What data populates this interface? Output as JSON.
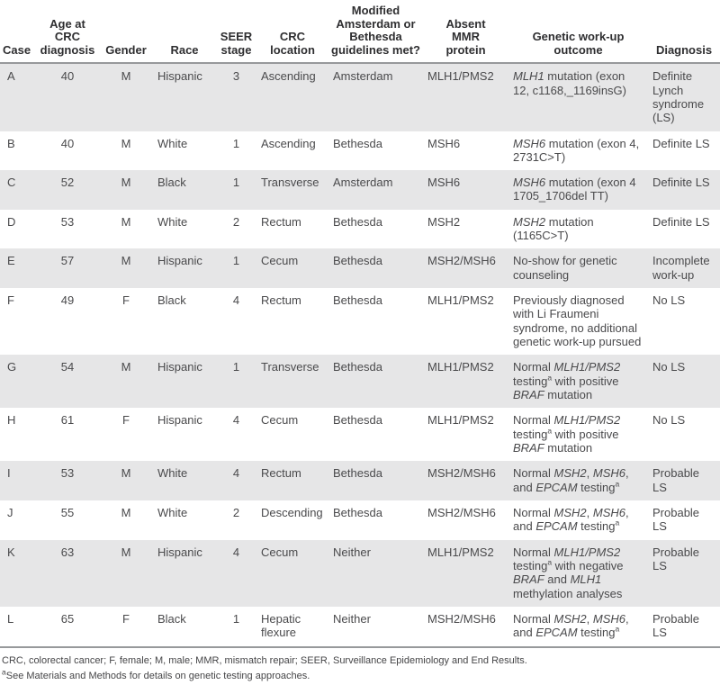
{
  "table": {
    "columns": [
      {
        "id": "case",
        "label": "Case"
      },
      {
        "id": "age",
        "label": "Age at CRC\ndiagnosis"
      },
      {
        "id": "gender",
        "label": "Gender"
      },
      {
        "id": "race",
        "label": "Race"
      },
      {
        "id": "stage",
        "label": "SEER\nstage"
      },
      {
        "id": "location",
        "label": "CRC\nlocation"
      },
      {
        "id": "guidelines",
        "label": "Modified\nAmsterdam or\nBethesda\nguidelines met?"
      },
      {
        "id": "mmr",
        "label": "Absent\nMMR\nprotein"
      },
      {
        "id": "outcome",
        "label": "Genetic work-up\noutcome"
      },
      {
        "id": "diagnosis",
        "label": "Diagnosis"
      }
    ],
    "rows": [
      {
        "case": "A",
        "age": "40",
        "gender": "M",
        "race": "Hispanic",
        "stage": "3",
        "location": "Ascending",
        "guidelines": "Amsterdam",
        "mmr": "MLH1/PMS2",
        "outcome": "*MLH1* mutation (exon 12, c1168,_1169insG)",
        "diagnosis": "Definite Lynch syndrome (LS)"
      },
      {
        "case": "B",
        "age": "40",
        "gender": "M",
        "race": "White",
        "stage": "1",
        "location": "Ascending",
        "guidelines": "Bethesda",
        "mmr": "MSH6",
        "outcome": "*MSH6* mutation (exon 4, 2731C>T)",
        "diagnosis": "Definite LS"
      },
      {
        "case": "C",
        "age": "52",
        "gender": "M",
        "race": "Black",
        "stage": "1",
        "location": "Transverse",
        "guidelines": "Amsterdam",
        "mmr": "MSH6",
        "outcome": "*MSH6* mutation (exon 4 1705_1706del TT)",
        "diagnosis": "Definite LS"
      },
      {
        "case": "D",
        "age": "53",
        "gender": "M",
        "race": "White",
        "stage": "2",
        "location": "Rectum",
        "guidelines": "Bethesda",
        "mmr": "MSH2",
        "outcome": "*MSH2* mutation (1165C>T)",
        "diagnosis": "Definite LS"
      },
      {
        "case": "E",
        "age": "57",
        "gender": "M",
        "race": "Hispanic",
        "stage": "1",
        "location": "Cecum",
        "guidelines": "Bethesda",
        "mmr": "MSH2/MSH6",
        "outcome": "No-show for genetic counseling",
        "diagnosis": "Incomplete work-up"
      },
      {
        "case": "F",
        "age": "49",
        "gender": "F",
        "race": "Black",
        "stage": "4",
        "location": "Rectum",
        "guidelines": "Bethesda",
        "mmr": "MLH1/PMS2",
        "outcome": "Previously diagnosed with Li Fraumeni syndrome, no additional genetic work-up pursued",
        "diagnosis": "No LS"
      },
      {
        "case": "G",
        "age": "54",
        "gender": "M",
        "race": "Hispanic",
        "stage": "1",
        "location": "Transverse",
        "guidelines": "Bethesda",
        "mmr": "MLH1/PMS2",
        "outcome": "Normal *MLH1/PMS2* testing^a with positive *BRAF* mutation",
        "diagnosis": "No LS"
      },
      {
        "case": "H",
        "age": "61",
        "gender": "F",
        "race": "Hispanic",
        "stage": "4",
        "location": "Cecum",
        "guidelines": "Bethesda",
        "mmr": "MLH1/PMS2",
        "outcome": "Normal *MLH1/PMS2* testing^a with positive *BRAF* mutation",
        "diagnosis": "No LS"
      },
      {
        "case": "I",
        "age": "53",
        "gender": "M",
        "race": "White",
        "stage": "4",
        "location": "Rectum",
        "guidelines": "Bethesda",
        "mmr": "MSH2/MSH6",
        "outcome": "Normal *MSH2*, *MSH6*, and *EPCAM* testing^a",
        "diagnosis": "Probable LS"
      },
      {
        "case": "J",
        "age": "55",
        "gender": "M",
        "race": "White",
        "stage": "2",
        "location": "Descending",
        "guidelines": "Bethesda",
        "mmr": "MSH2/MSH6",
        "outcome": "Normal *MSH2*, *MSH6*, and *EPCAM* testing^a",
        "diagnosis": "Probable LS"
      },
      {
        "case": "K",
        "age": "63",
        "gender": "M",
        "race": "Hispanic",
        "stage": "4",
        "location": "Cecum",
        "guidelines": "Neither",
        "mmr": "MLH1/PMS2",
        "outcome": "Normal *MLH1/PMS2* testing^a with negative *BRAF* and *MLH1* methylation analyses",
        "diagnosis": "Probable LS"
      },
      {
        "case": "L",
        "age": "65",
        "gender": "F",
        "race": "Black",
        "stage": "1",
        "location": "Hepatic flexure",
        "guidelines": "Neither",
        "mmr": "MSH2/MSH6",
        "outcome": "Normal *MSH2*, *MSH6*, and *EPCAM* testing^a",
        "diagnosis": "Probable LS"
      }
    ]
  },
  "footnotes": {
    "abbreviations": "CRC, colorectal cancer; F, female; M, male; MMR, mismatch repair; SEER, Surveillance Epidemiology and End Results.",
    "testing_note": "^aSee Materials and Methods for details on genetic testing approaches."
  },
  "colors": {
    "row_shade": "#e6e6e7",
    "rule": "#97999b",
    "header_text": "#2e2e30",
    "body_text": "#4a4a4c"
  }
}
